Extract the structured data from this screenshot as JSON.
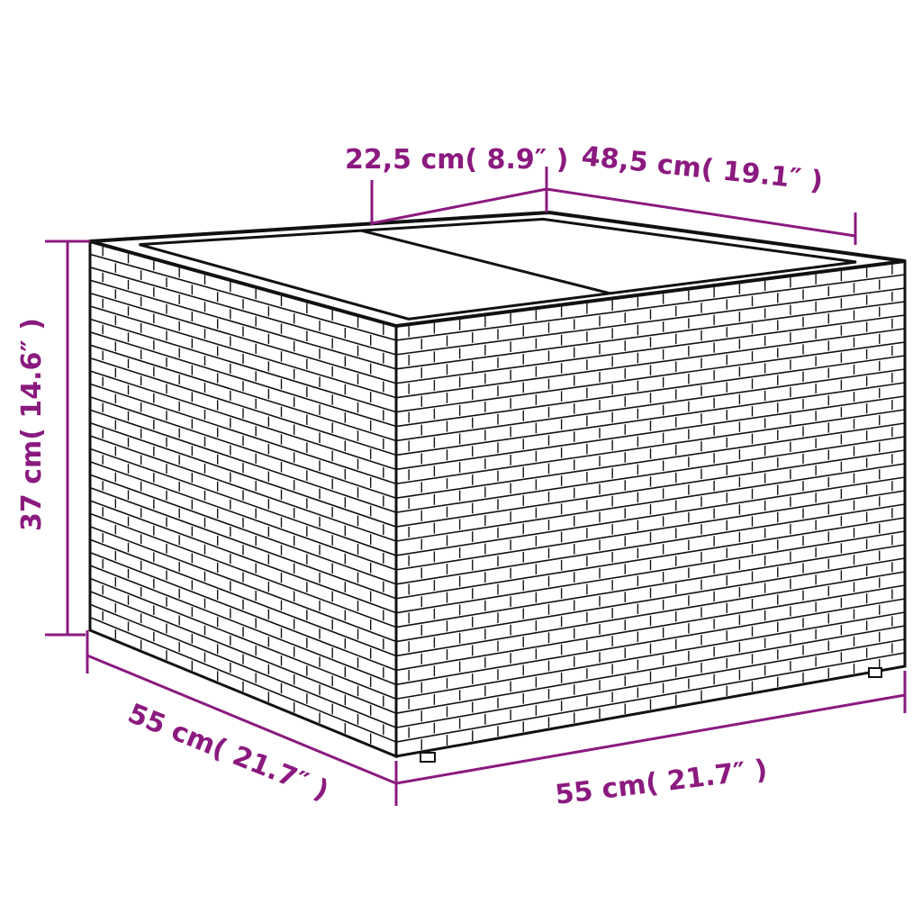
{
  "colors": {
    "dimension": "#8B1A7F",
    "outline": "#111111",
    "background": "#ffffff"
  },
  "dimensions": {
    "top_panel_width": "22,5 cm( 8.9″  )",
    "top_depth": "48,5 cm( 19.1″  )",
    "height": "37 cm( 14.6″  )",
    "side_depth": "55 cm( 21.7″  )",
    "front_width": "55 cm( 21.7″  )"
  }
}
